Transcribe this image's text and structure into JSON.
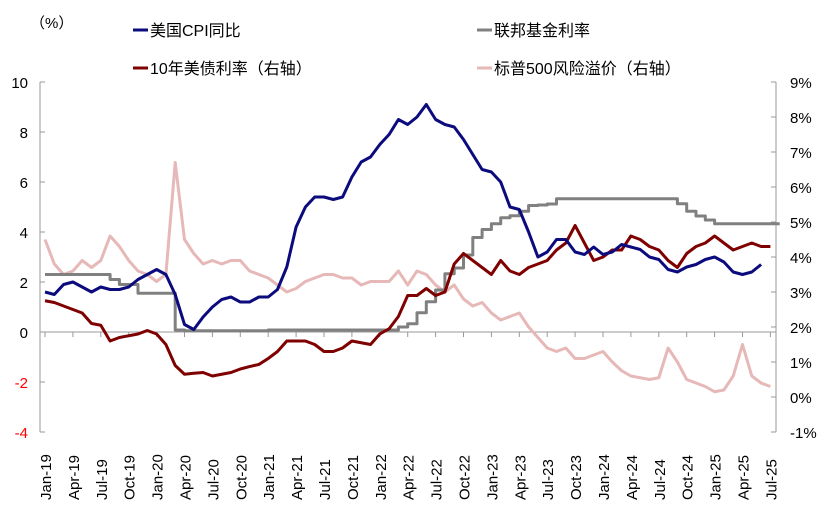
{
  "chart_data": {
    "type": "line",
    "left_unit_label": "（%）",
    "x_tick_labels": [
      "Jan-19",
      "Apr-19",
      "Jul-19",
      "Oct-19",
      "Jan-20",
      "Apr-20",
      "Jul-20",
      "Oct-20",
      "Jan-21",
      "Apr-21",
      "Jul-21",
      "Oct-21",
      "Jan-22",
      "Apr-22",
      "Jul-22",
      "Oct-22",
      "Jan-23",
      "Apr-23",
      "Jul-23",
      "Oct-23",
      "Jan-24",
      "Apr-24",
      "Jul-24",
      "Oct-24",
      "Jan-25",
      "Apr-25",
      "Jul-25"
    ],
    "x_start": "Jan-19",
    "x_frequency": "monthly",
    "left_axis": {
      "ylim": [
        -4,
        10
      ],
      "ticks": [
        "10",
        "8",
        "6",
        "4",
        "2",
        "0",
        "-2",
        "-4"
      ],
      "negative_color": "#ff0000"
    },
    "right_axis": {
      "ylim": [
        -1,
        9
      ],
      "ticks": [
        "9%",
        "8%",
        "7%",
        "6%",
        "5%",
        "4%",
        "3%",
        "2%",
        "1%",
        "0%",
        "-1%"
      ]
    },
    "legend_placement": "top",
    "grid": false,
    "series": [
      {
        "name": "美国CPI同比",
        "axis": "left",
        "color": "#0b0b7e",
        "values": [
          1.6,
          1.5,
          1.9,
          2.0,
          1.8,
          1.6,
          1.8,
          1.7,
          1.7,
          1.8,
          2.1,
          2.3,
          2.5,
          2.3,
          1.5,
          0.3,
          0.1,
          0.6,
          1.0,
          1.3,
          1.4,
          1.2,
          1.2,
          1.4,
          1.4,
          1.7,
          2.6,
          4.2,
          5.0,
          5.4,
          5.4,
          5.3,
          5.4,
          6.2,
          6.8,
          7.0,
          7.5,
          7.9,
          8.5,
          8.3,
          8.6,
          9.1,
          8.5,
          8.3,
          8.2,
          7.7,
          7.1,
          6.5,
          6.4,
          6.0,
          5.0,
          4.9,
          4.0,
          3.0,
          3.2,
          3.7,
          3.7,
          3.2,
          3.1,
          3.4,
          3.1,
          3.2,
          3.5,
          3.4,
          3.3,
          3.0,
          2.9,
          2.5,
          2.4,
          2.6,
          2.7,
          2.9,
          3.0,
          2.8,
          2.4,
          2.3,
          2.4,
          2.7
        ]
      },
      {
        "name": "联邦基金利率",
        "axis": "left",
        "color": "#808080",
        "step": true,
        "values": [
          2.3,
          2.3,
          2.3,
          2.3,
          2.3,
          2.3,
          2.3,
          2.1,
          1.9,
          1.9,
          1.55,
          1.55,
          1.55,
          1.55,
          0.08,
          0.05,
          0.05,
          0.05,
          0.05,
          0.05,
          0.05,
          0.05,
          0.05,
          0.05,
          0.08,
          0.08,
          0.08,
          0.08,
          0.08,
          0.08,
          0.08,
          0.08,
          0.08,
          0.08,
          0.08,
          0.08,
          0.08,
          0.08,
          0.2,
          0.33,
          0.77,
          1.21,
          1.68,
          2.33,
          2.56,
          3.08,
          3.78,
          4.1,
          4.33,
          4.57,
          4.65,
          4.83,
          5.06,
          5.08,
          5.12,
          5.33,
          5.33,
          5.33,
          5.33,
          5.33,
          5.33,
          5.33,
          5.33,
          5.33,
          5.33,
          5.33,
          5.33,
          5.33,
          5.13,
          4.83,
          4.64,
          4.48,
          4.33,
          4.33,
          4.33,
          4.33,
          4.33,
          4.33,
          4.33
        ]
      },
      {
        "name": "10年美债利率（右轴）",
        "axis": "right",
        "color": "#7f0000",
        "values": [
          2.75,
          2.7,
          2.6,
          2.5,
          2.4,
          2.1,
          2.05,
          1.6,
          1.7,
          1.75,
          1.8,
          1.9,
          1.8,
          1.5,
          0.9,
          0.65,
          0.68,
          0.7,
          0.6,
          0.65,
          0.7,
          0.8,
          0.87,
          0.93,
          1.1,
          1.3,
          1.6,
          1.6,
          1.6,
          1.5,
          1.3,
          1.3,
          1.4,
          1.6,
          1.55,
          1.5,
          1.8,
          1.95,
          2.3,
          2.9,
          2.9,
          3.1,
          2.9,
          3.0,
          3.8,
          4.1,
          3.9,
          3.7,
          3.5,
          3.9,
          3.6,
          3.5,
          3.7,
          3.8,
          3.9,
          4.2,
          4.4,
          4.9,
          4.4,
          3.9,
          4.0,
          4.2,
          4.2,
          4.6,
          4.5,
          4.3,
          4.2,
          3.9,
          3.7,
          4.1,
          4.3,
          4.4,
          4.6,
          4.4,
          4.2,
          4.3,
          4.4,
          4.3,
          4.3
        ]
      },
      {
        "name": "标普500风险溢价（右轴）",
        "axis": "right",
        "color": "#e6b8b7",
        "values": [
          4.5,
          3.8,
          3.5,
          3.6,
          3.9,
          3.7,
          3.9,
          4.6,
          4.3,
          3.9,
          3.6,
          3.5,
          3.3,
          3.5,
          6.7,
          4.5,
          4.1,
          3.8,
          3.9,
          3.8,
          3.9,
          3.9,
          3.6,
          3.5,
          3.4,
          3.2,
          3.0,
          3.1,
          3.3,
          3.4,
          3.5,
          3.5,
          3.4,
          3.4,
          3.2,
          3.3,
          3.3,
          3.3,
          3.6,
          3.2,
          3.6,
          3.5,
          3.2,
          3.0,
          3.2,
          2.8,
          2.6,
          2.7,
          2.4,
          2.2,
          2.3,
          2.4,
          2.0,
          1.7,
          1.4,
          1.3,
          1.4,
          1.1,
          1.1,
          1.2,
          1.3,
          1.0,
          0.75,
          0.6,
          0.55,
          0.5,
          0.55,
          1.4,
          1.0,
          0.5,
          0.4,
          0.3,
          0.15,
          0.2,
          0.6,
          1.5,
          0.6,
          0.4,
          0.3
        ]
      }
    ]
  }
}
